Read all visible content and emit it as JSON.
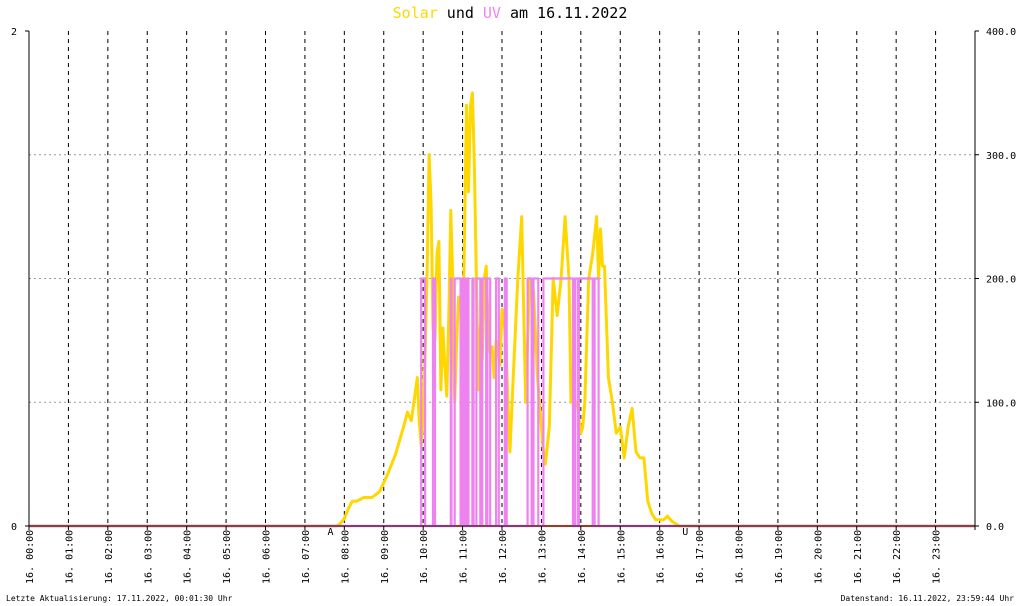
{
  "title": {
    "solar_word": "Solar",
    "und_word": "und",
    "uv_word": "UV",
    "date_text": "am 16.11.2022"
  },
  "colors": {
    "solar": "#ffd700",
    "uv": "#ee82ee",
    "orange_line": "#ff8c69",
    "marker": "#c00000"
  },
  "footer": {
    "left": "Letzte Aktualisierung: 17.11.2022, 00:01:30 Uhr",
    "right": "Datenstand: 16.11.2022, 23:59:44 Uhr"
  },
  "markers": {
    "sunrise_label": "A",
    "sunset_label": "U"
  },
  "chart_data": {
    "type": "line",
    "x_tick_labels": [
      "16. 00:00",
      "16. 01:00",
      "16. 02:00",
      "16. 03:00",
      "16. 04:00",
      "16. 05:00",
      "16. 06:00",
      "16. 07:00",
      "16. 08:00",
      "16. 09:00",
      "16. 10:00",
      "16. 11:00",
      "16. 12:00",
      "16. 13:00",
      "16. 14:00",
      "16. 15:00",
      "16. 16:00",
      "16. 17:00",
      "16. 18:00",
      "16. 19:00",
      "16. 20:00",
      "16. 21:00",
      "16. 22:00",
      "16. 23:00"
    ],
    "x_range_hours": [
      0,
      24
    ],
    "y_left": {
      "range": [
        0,
        2
      ],
      "tick_labels": [
        "0",
        "2"
      ]
    },
    "y_right": {
      "range": [
        0,
        400
      ],
      "tick_labels": [
        "0.0",
        "100.0",
        "200.0",
        "300.0",
        "400.0"
      ]
    },
    "grid": true,
    "sunrise_hour": 7.65,
    "sunset_hour": 16.65,
    "series": [
      {
        "axis": "right",
        "color": "solar",
        "x_hours": [
          0,
          7.8,
          7.9,
          8.0,
          8.1,
          8.2,
          8.3,
          8.5,
          8.7,
          8.9,
          9.1,
          9.3,
          9.5,
          9.6,
          9.7,
          9.8,
          9.85,
          9.9,
          9.95,
          10.0,
          10.05,
          10.1,
          10.15,
          10.2,
          10.25,
          10.3,
          10.35,
          10.4,
          10.45,
          10.5,
          10.55,
          10.6,
          10.65,
          10.7,
          10.75,
          10.8,
          10.85,
          10.9,
          10.95,
          11.0,
          11.05,
          11.1,
          11.15,
          11.2,
          11.25,
          11.3,
          11.35,
          11.4,
          11.45,
          11.5,
          11.55,
          11.6,
          11.65,
          11.7,
          11.75,
          11.8,
          11.85,
          11.9,
          11.95,
          12.0,
          12.05,
          12.1,
          12.15,
          12.2,
          12.3,
          12.4,
          12.5,
          12.6,
          12.7,
          12.8,
          12.9,
          13.0,
          13.05,
          13.1,
          13.2,
          13.3,
          13.4,
          13.5,
          13.6,
          13.7,
          13.75,
          13.8,
          13.85,
          13.9,
          14.0,
          14.05,
          14.1,
          14.2,
          14.3,
          14.4,
          14.45,
          14.5,
          14.55,
          14.6,
          14.7,
          14.8,
          14.9,
          15.0,
          15.1,
          15.2,
          15.3,
          15.4,
          15.5,
          15.6,
          15.7,
          15.8,
          15.9,
          16.0,
          16.1,
          16.2,
          16.3,
          16.4,
          16.5,
          24
        ],
        "y": [
          0,
          0,
          2,
          6,
          14,
          20,
          20,
          23,
          23,
          28,
          42,
          58,
          80,
          92,
          85,
          108,
          120,
          85,
          65,
          90,
          140,
          205,
          300,
          260,
          160,
          150,
          220,
          230,
          110,
          160,
          130,
          105,
          170,
          255,
          200,
          100,
          150,
          185,
          180,
          140,
          240,
          340,
          270,
          340,
          350,
          290,
          200,
          110,
          160,
          135,
          200,
          210,
          160,
          140,
          145,
          120,
          150,
          140,
          130,
          175,
          165,
          150,
          100,
          60,
          130,
          200,
          250,
          100,
          200,
          190,
          120,
          80,
          60,
          50,
          80,
          200,
          170,
          200,
          250,
          200,
          100,
          110,
          100,
          100,
          75,
          80,
          100,
          200,
          220,
          250,
          200,
          240,
          210,
          210,
          120,
          100,
          75,
          80,
          55,
          80,
          95,
          60,
          55,
          55,
          20,
          10,
          5,
          5,
          5,
          8,
          4,
          2,
          0,
          0
        ]
      },
      {
        "axis": "right",
        "color": "orange_line",
        "x_hours": [
          0,
          24
        ],
        "y": [
          0,
          0
        ]
      },
      {
        "axis": "left",
        "color": "uv",
        "x_hours": [
          0,
          9.95,
          9.95,
          10.05,
          10.05,
          10.25,
          10.25,
          10.3,
          10.3,
          10.7,
          10.7,
          10.72,
          10.72,
          10.8,
          10.8,
          10.95,
          10.95,
          11.0,
          11.0,
          11.05,
          11.05,
          11.1,
          11.1,
          11.15,
          11.15,
          11.25,
          11.25,
          11.28,
          11.28,
          11.35,
          11.35,
          11.45,
          11.45,
          11.5,
          11.5,
          11.6,
          11.6,
          11.63,
          11.63,
          11.7,
          11.7,
          11.85,
          11.85,
          11.92,
          11.92,
          12.07,
          12.07,
          12.12,
          12.12,
          12.65,
          12.65,
          12.75,
          12.75,
          12.8,
          12.8,
          12.92,
          12.92,
          13.05,
          13.05,
          13.8,
          13.8,
          13.85,
          13.85,
          13.92,
          13.92,
          13.95,
          13.95,
          14.3,
          14.3,
          14.35,
          14.35,
          14.45,
          14.45,
          24
        ],
        "y": [
          0,
          0,
          1,
          1,
          0,
          0,
          1,
          1,
          0,
          0,
          1,
          1,
          0,
          0,
          1,
          1,
          0,
          0,
          1,
          1,
          0,
          0,
          1,
          1,
          0,
          0,
          1,
          1,
          0,
          0,
          1,
          1,
          0,
          0,
          1,
          1,
          0,
          0,
          1,
          1,
          0,
          0,
          1,
          1,
          0,
          0,
          1,
          1,
          0,
          0,
          1,
          1,
          0,
          0,
          1,
          1,
          0,
          0,
          1,
          1,
          0,
          0,
          1,
          1,
          0,
          0,
          1,
          1,
          0,
          0,
          1,
          1,
          0,
          0
        ]
      }
    ]
  }
}
